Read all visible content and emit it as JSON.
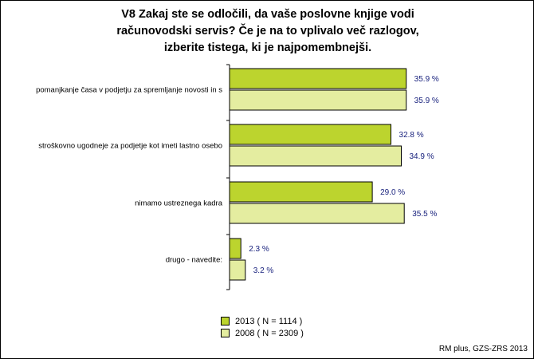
{
  "chart_data": {
    "type": "bar",
    "orientation": "horizontal",
    "title_lines": [
      "V8 Zakaj ste se odločili, da vaše poslovne knjige vodi",
      "računovodski servis? Če je na to vplivalo več razlogov,",
      "izberite tistega, ki je najpomembnejši."
    ],
    "categories": [
      "pomanjkanje časa v podjetju za spremljanje novosti in s",
      "stroškovno ugodneje za podjetje kot imeti lastno osebo",
      "nimamo ustreznega kadra",
      "drugo - navedite:"
    ],
    "series": [
      {
        "name": "2013 ( N = 1114 )",
        "values": [
          35.9,
          32.8,
          29.0,
          2.3
        ],
        "labels": [
          "35.9 %",
          "32.8 %",
          "29.0 %",
          "2.3 %"
        ],
        "color": "#bcd42e"
      },
      {
        "name": "2008 ( N = 2309 )",
        "values": [
          35.9,
          34.9,
          35.5,
          3.2
        ],
        "labels": [
          "35.9 %",
          "34.9 %",
          "35.5 %",
          "3.2 %"
        ],
        "color": "#e4eda0"
      }
    ],
    "xlim": [
      0,
      40
    ],
    "grid": false,
    "legend_position": "bottom",
    "value_label_color": "#1a237e",
    "source": "RM plus, GZS-ZRS 2013"
  }
}
